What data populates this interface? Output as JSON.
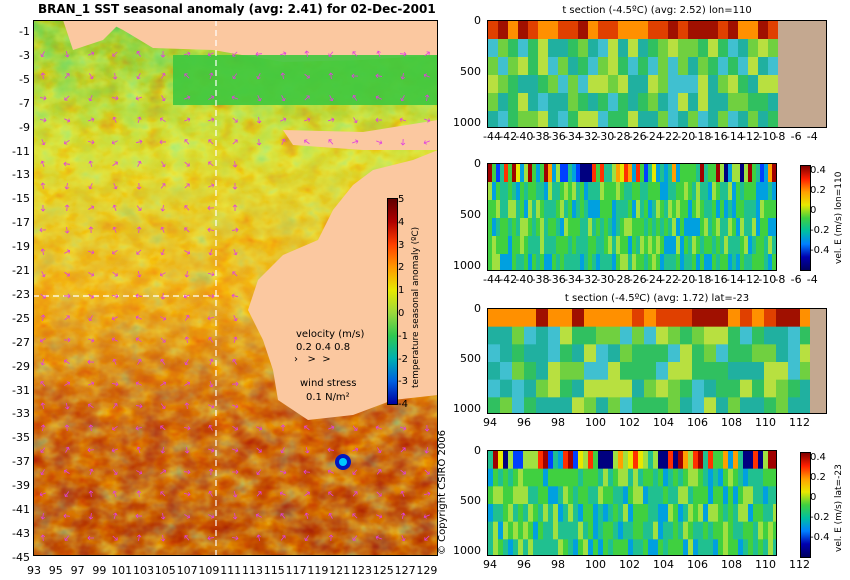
{
  "main_title": "BRAN_1  SST seasonal anomaly (avg: 2.41) for 02-Dec-2001",
  "copyright": "© Copyright CSIRO 2006",
  "colors": {
    "land": "#fbc8a0",
    "section_land": "#c4a890",
    "arrow": "#e040e0",
    "dashed_line": "#ffffff"
  },
  "map_legend": {
    "velocity_label": "velocity (m/s)",
    "velocity_scale": "0.2 0.4 0.8",
    "wind_label": "wind stress",
    "wind_scale": "0.1 N/m²"
  },
  "chart_data": [
    {
      "type": "heatmap",
      "title": "BRAN_1  SST seasonal anomaly (avg: 2.41) for 02-Dec-2001",
      "xlabel": "",
      "ylabel": "",
      "x_ticks": [
        "93",
        "95",
        "97",
        "99",
        "101",
        "103",
        "105",
        "107",
        "109",
        "111",
        "113",
        "115",
        "117",
        "119",
        "121",
        "123",
        "125",
        "127",
        "129"
      ],
      "y_ticks": [
        "-1",
        "-3",
        "-5",
        "-7",
        "-9",
        "-11",
        "-13",
        "-15",
        "-17",
        "-19",
        "-21",
        "-23",
        "-25",
        "-27",
        "-29",
        "-31",
        "-33",
        "-35",
        "-37",
        "-39",
        "-41",
        "-43",
        "-45"
      ],
      "xlim": [
        93,
        130
      ],
      "ylim": [
        -45,
        0
      ],
      "section_lines": {
        "lon": 110,
        "lat": -23
      },
      "colorbar": {
        "label": "temperature seasonal anomaly (ºC)",
        "ticks": [
          "5",
          "4",
          "3",
          "2",
          "1",
          "0",
          "-1",
          "-2",
          "-3",
          "-4"
        ],
        "range": [
          -4,
          5
        ]
      }
    },
    {
      "type": "heatmap",
      "title": "t section (-4.5ºC) (avg: 2.52) lon=110",
      "x_ticks": [
        "-44",
        "-42",
        "-40",
        "-38",
        "-36",
        "-34",
        "-32",
        "-30",
        "-28",
        "-26",
        "-24",
        "-22",
        "-20",
        "-18",
        "-16",
        "-14",
        "-12",
        "-10",
        "-8",
        "-6",
        "-4"
      ],
      "y_ticks": [
        "0",
        "500",
        "1000"
      ],
      "xlim": [
        -45,
        -2
      ],
      "ylim": [
        1050,
        0
      ]
    },
    {
      "type": "heatmap",
      "title": "",
      "x_ticks": [
        "-44",
        "-42",
        "-40",
        "-38",
        "-36",
        "-34",
        "-32",
        "-30",
        "-28",
        "-26",
        "-24",
        "-22",
        "-20",
        "-18",
        "-16",
        "-14",
        "-12",
        "-10",
        "-8",
        "-6",
        "-4"
      ],
      "y_ticks": [
        "0",
        "500",
        "1000"
      ],
      "xlim": [
        -45,
        -2
      ],
      "ylim": [
        1050,
        0
      ],
      "colorbar": {
        "label": "vel. E (m/s) lon=110",
        "ticks": [
          "0.4",
          "0.2",
          "0",
          "-0.2",
          "-0.4"
        ],
        "range": [
          -0.5,
          0.5
        ]
      }
    },
    {
      "type": "heatmap",
      "title": "t section (-4.5ºC) (avg: 1.72) lat=-23",
      "x_ticks": [
        "94",
        "96",
        "98",
        "100",
        "102",
        "104",
        "106",
        "108",
        "110",
        "112"
      ],
      "y_ticks": [
        "0",
        "500",
        "1000"
      ],
      "xlim": [
        93,
        114
      ],
      "ylim": [
        1050,
        0
      ]
    },
    {
      "type": "heatmap",
      "title": "",
      "x_ticks": [
        "94",
        "96",
        "98",
        "100",
        "102",
        "104",
        "106",
        "108",
        "110",
        "112"
      ],
      "y_ticks": [
        "0",
        "500",
        "1000"
      ],
      "xlim": [
        93,
        114
      ],
      "ylim": [
        1050,
        0
      ],
      "colorbar": {
        "label": "vel. E (m/s) lat=-23",
        "ticks": [
          "0.4",
          "0.2",
          "0",
          "-0.2",
          "-0.4"
        ],
        "range": [
          -0.5,
          0.5
        ]
      }
    }
  ]
}
